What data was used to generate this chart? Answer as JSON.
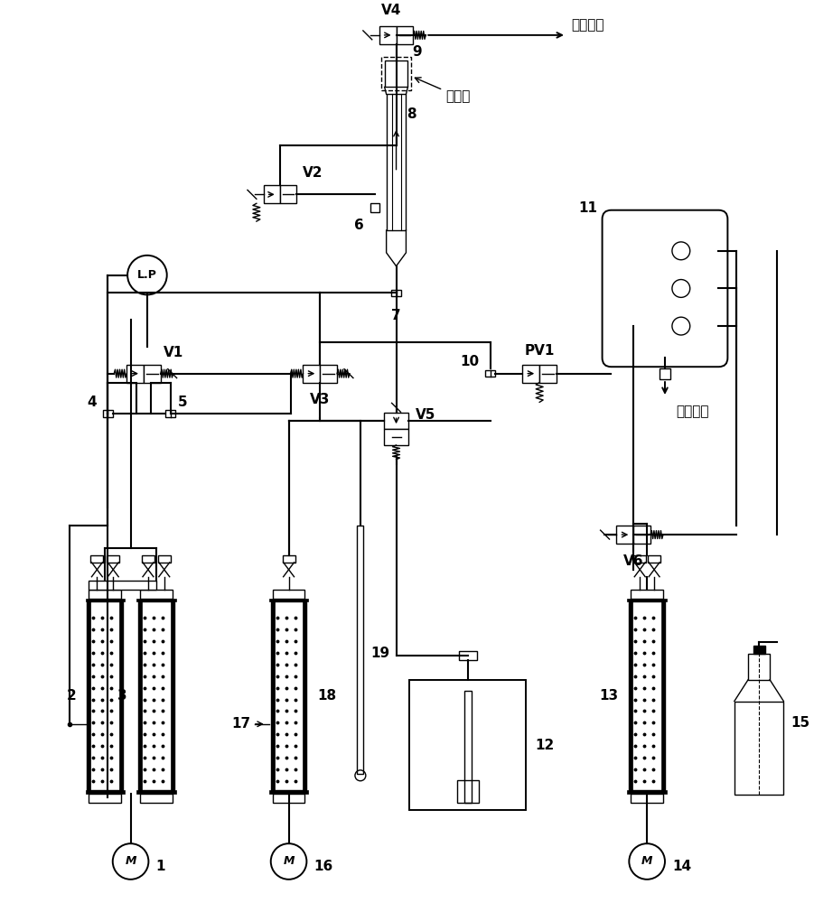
{
  "figsize": [
    9.01,
    10.0
  ],
  "dpi": 100,
  "bg": "#ffffff",
  "lc": "#000000",
  "labels": {
    "waste1": "废液出口",
    "waste2": "废液出口",
    "detect": "检测区",
    "V1": "V1",
    "V2": "V2",
    "V3": "V3",
    "V4": "V4",
    "V5": "V5",
    "V6": "V6",
    "PV1": "PV1",
    "LP": "L.P",
    "1": "1",
    "2": "2",
    "3": "3",
    "4": "4",
    "5": "5",
    "6": "6",
    "7": "7",
    "8": "8",
    "9": "9",
    "10": "10",
    "11": "11",
    "12": "12",
    "13": "13",
    "14": "14",
    "15": "15",
    "16": "16",
    "17": "17",
    "18": "18",
    "19": "19"
  }
}
